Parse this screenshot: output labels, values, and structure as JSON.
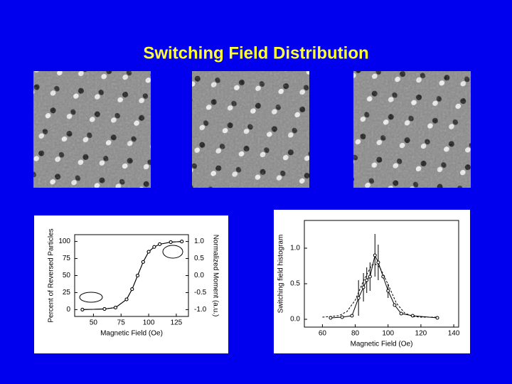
{
  "title": "Switching Field Distribution",
  "chart_data": [
    {
      "type": "scatter",
      "xlabel": "Magnetic Field (Oe)",
      "ylabel": "Percent of Reversed Particles",
      "y2label": "Normalized Moment (a.u.)",
      "xlim": [
        33,
        136
      ],
      "ylim": [
        -10,
        110
      ],
      "y2lim": [
        -1.2,
        1.2
      ],
      "xticks": [
        50,
        75,
        100,
        125
      ],
      "yticks": [
        0,
        25,
        50,
        75,
        100
      ],
      "y2ticks": [
        {
          "value": -1,
          "label": "-1.0"
        },
        -0.5,
        {
          "value": 0,
          "label": "0.0"
        },
        0.5,
        {
          "value": 1,
          "label": "1.0"
        }
      ],
      "color": "#000000",
      "series": [
        {
          "x": [
            40,
            60,
            70,
            80,
            85,
            90,
            95,
            100,
            105,
            110,
            120,
            130
          ],
          "values": [
            0,
            1,
            3,
            15,
            30,
            50,
            70,
            85,
            92,
            96,
            99,
            100
          ]
        },
        {
          "axis": "y2",
          "x": [
            40,
            60,
            70,
            80,
            85,
            90,
            95,
            100,
            105,
            110,
            120,
            130
          ],
          "values": [
            -1,
            -0.98,
            -0.94,
            -0.7,
            -0.4,
            0,
            0.4,
            0.7,
            0.84,
            0.92,
            0.98,
            1
          ]
        }
      ]
    },
    {
      "type": "scatter",
      "xlabel": "Magnetic Field (Oe)",
      "ylabel": "Switching field histogram",
      "xlim": [
        49,
        143
      ],
      "ylim": [
        -0.11,
        1.39
      ],
      "xticks": [
        60,
        80,
        100,
        120,
        140
      ],
      "yticks": [
        {
          "value": 0,
          "label": "0.0"
        },
        0.5,
        {
          "value": 1,
          "label": "1.0"
        }
      ],
      "color": "#000000",
      "series": [
        {
          "x": [
            65,
            72,
            78,
            82,
            85,
            87,
            89,
            92,
            94,
            97,
            100,
            104,
            108,
            115,
            130
          ],
          "values": [
            0.02,
            0.03,
            0.05,
            0.3,
            0.45,
            0.55,
            0.6,
            0.9,
            0.8,
            0.6,
            0.4,
            0.2,
            0.08,
            0.05,
            0.02
          ],
          "errors": [
            null,
            null,
            null,
            0.25,
            0.2,
            0.18,
            0.2,
            0.3,
            0.25,
            null,
            0.1,
            null,
            null,
            null,
            null
          ]
        },
        {
          "line": "dashed",
          "x": [
            60,
            70,
            75,
            80,
            85,
            90,
            92,
            95,
            100,
            105,
            110,
            115,
            120,
            130
          ],
          "values": [
            0.03,
            0.05,
            0.11,
            0.27,
            0.54,
            0.76,
            0.78,
            0.73,
            0.49,
            0.23,
            0.09,
            0.04,
            0.03,
            0.03
          ]
        }
      ]
    }
  ]
}
